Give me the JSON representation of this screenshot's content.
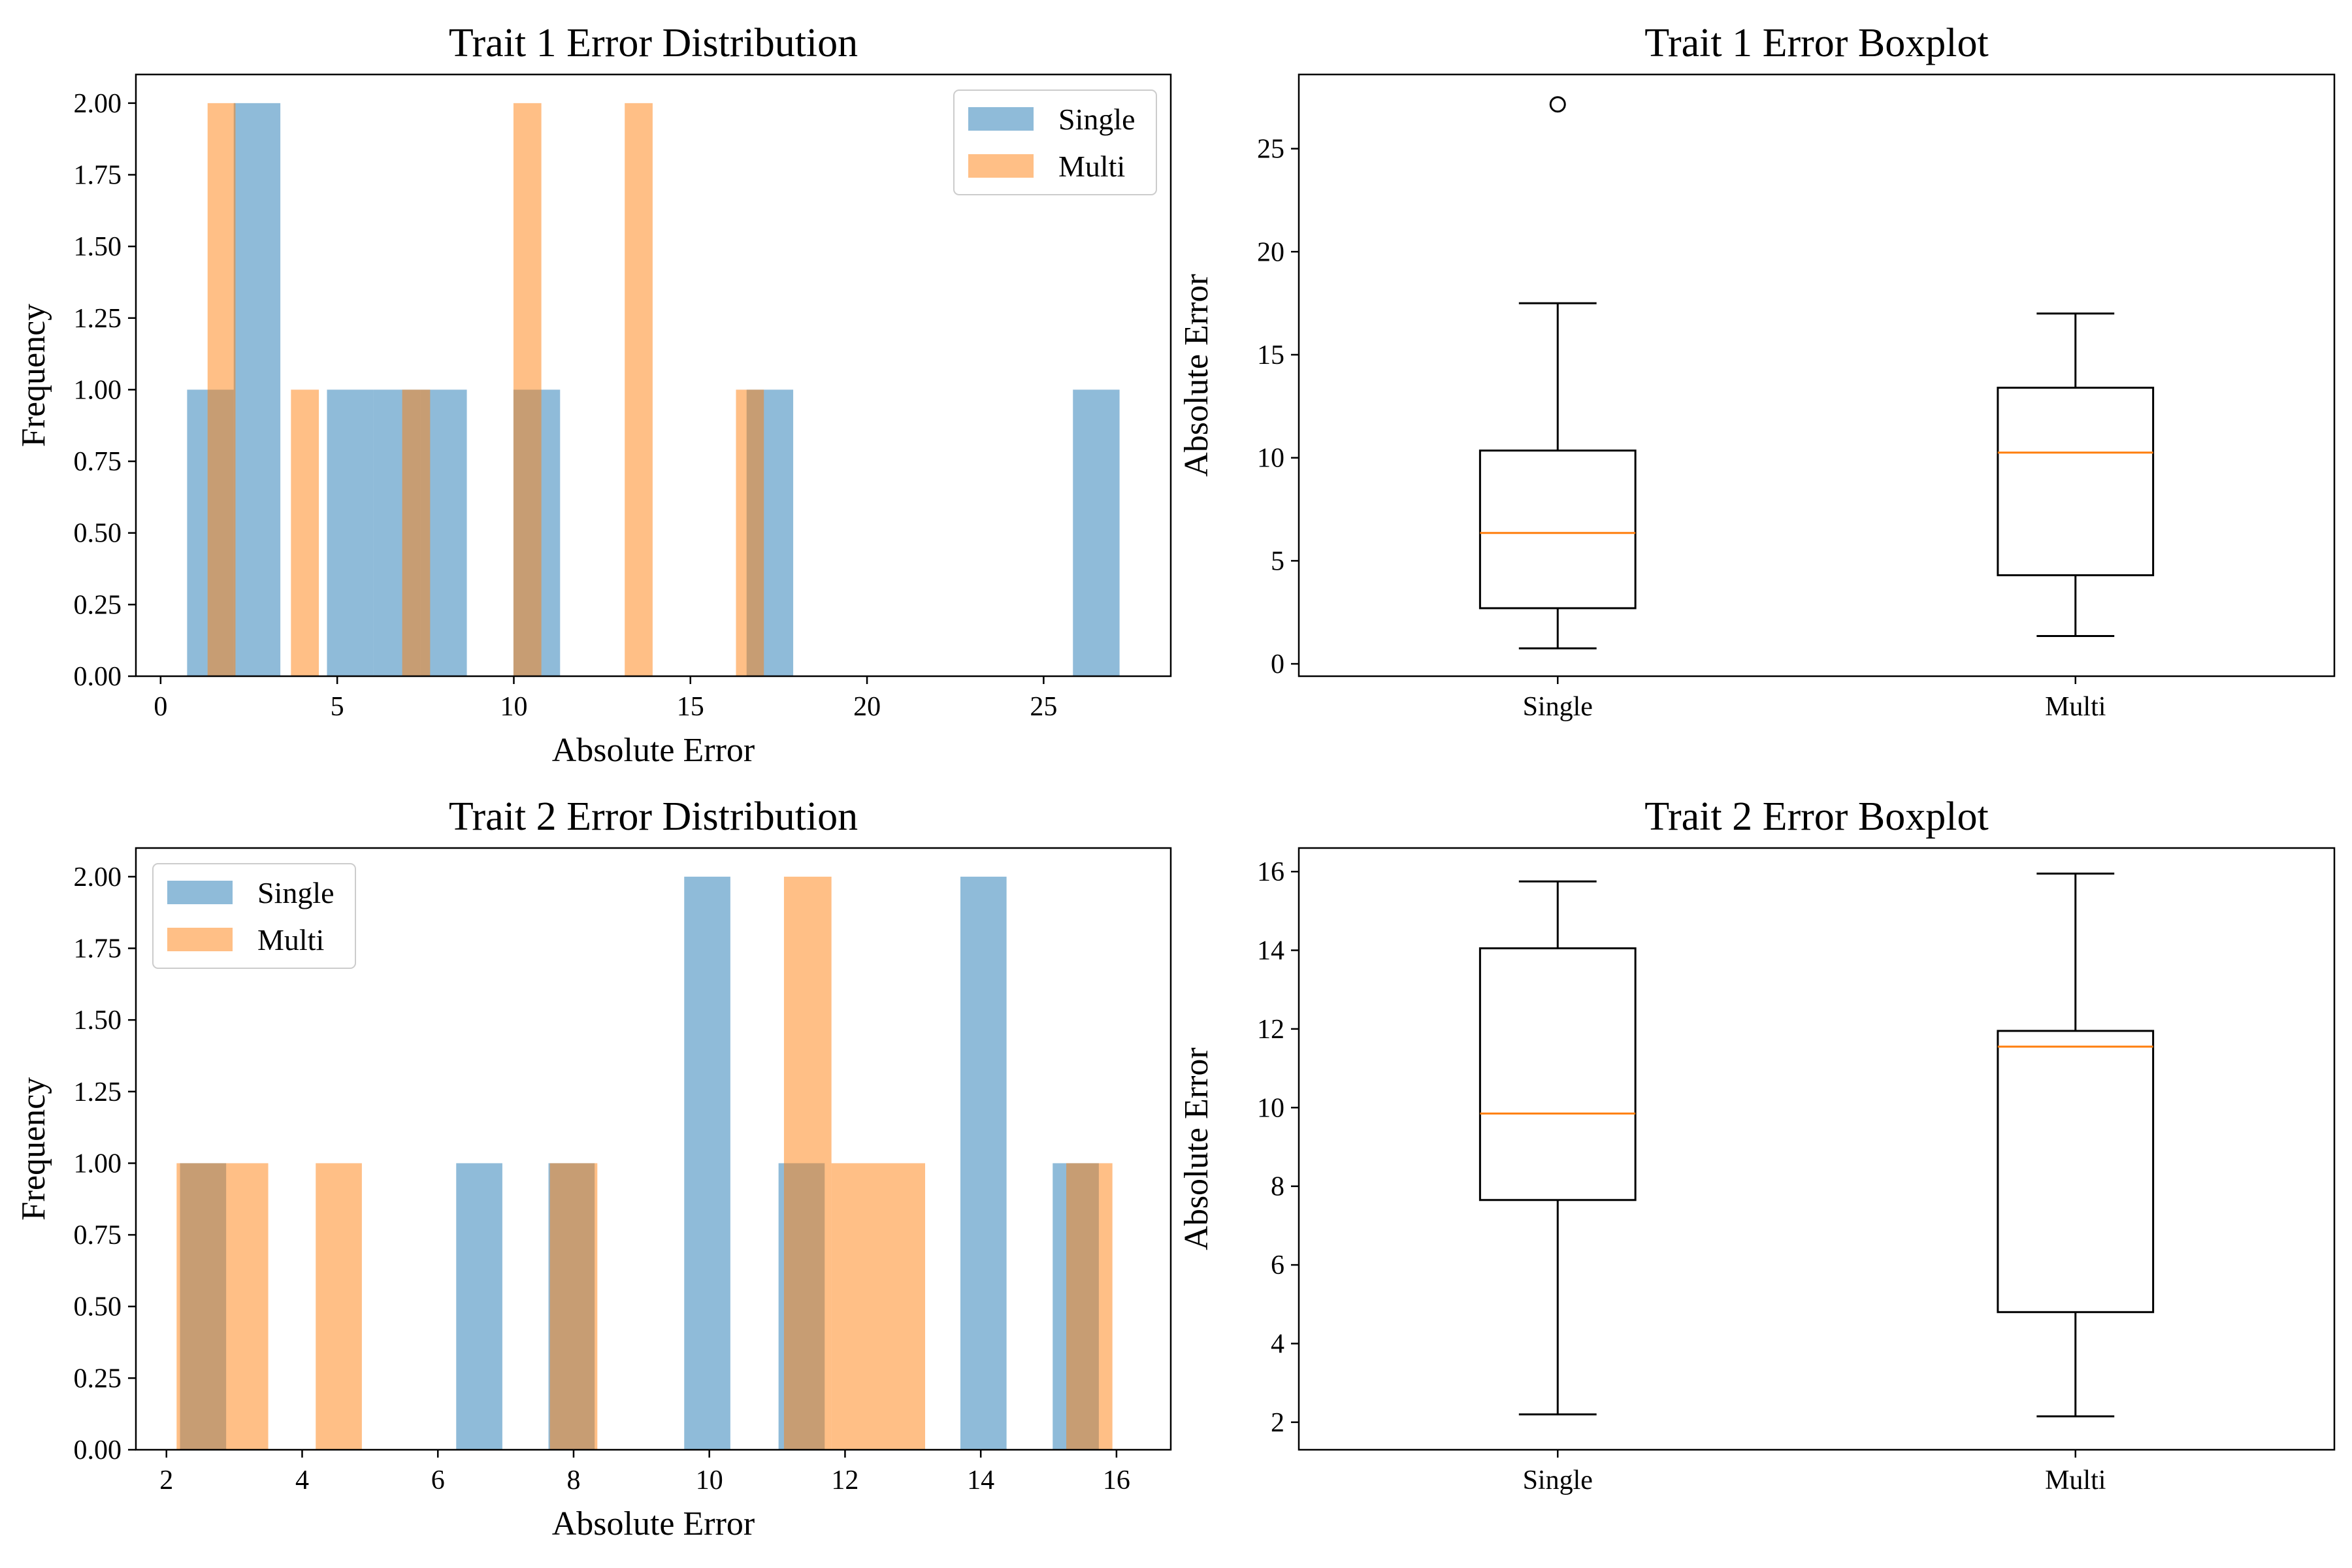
{
  "colors": {
    "single": "#1f77b4",
    "multi": "#ff7f0e",
    "median": "#ff7f0e",
    "axes": "#000000"
  },
  "chart_data": [
    {
      "type": "histogram",
      "title": "Trait 1 Error Distribution",
      "xlabel": "Absolute Error",
      "ylabel": "Frequency",
      "xlim": [
        -0.7,
        28.6
      ],
      "ylim": [
        0,
        2.1
      ],
      "xticks": [
        0,
        5,
        10,
        15,
        20,
        25
      ],
      "yticks": [
        "0.00",
        "0.25",
        "0.50",
        "0.75",
        "1.00",
        "1.25",
        "1.50",
        "1.75",
        "2.00"
      ],
      "legend": "top-right",
      "series": [
        {
          "name": "Single",
          "color": "#1f77b4",
          "opacity": 0.5,
          "bins": [
            {
              "x0": 0.75,
              "x1": 2.07,
              "count": 1
            },
            {
              "x0": 2.07,
              "x1": 3.39,
              "count": 2
            },
            {
              "x0": 4.71,
              "x1": 6.03,
              "count": 1
            },
            {
              "x0": 6.03,
              "x1": 7.35,
              "count": 1
            },
            {
              "x0": 7.35,
              "x1": 8.67,
              "count": 1
            },
            {
              "x0": 9.99,
              "x1": 11.31,
              "count": 1
            },
            {
              "x0": 16.59,
              "x1": 17.91,
              "count": 1
            },
            {
              "x0": 25.83,
              "x1": 27.15,
              "count": 1
            }
          ]
        },
        {
          "name": "Multi",
          "color": "#ff7f0e",
          "opacity": 0.5,
          "bins": [
            {
              "x0": 1.33,
              "x1": 2.12,
              "count": 2
            },
            {
              "x0": 3.69,
              "x1": 4.48,
              "count": 1
            },
            {
              "x0": 6.84,
              "x1": 7.63,
              "count": 1
            },
            {
              "x0": 9.99,
              "x1": 10.78,
              "count": 2
            },
            {
              "x0": 13.14,
              "x1": 13.93,
              "count": 2
            },
            {
              "x0": 16.29,
              "x1": 17.08,
              "count": 1
            }
          ]
        }
      ]
    },
    {
      "type": "boxplot",
      "title": "Trait 1 Error Boxplot",
      "xlabel": "",
      "ylabel": "Absolute Error",
      "ylim": [
        -0.6,
        28.6
      ],
      "yticks": [
        0,
        5,
        10,
        15,
        20,
        25
      ],
      "categories": [
        "Single",
        "Multi"
      ],
      "boxes": [
        {
          "name": "Single",
          "whisker_low": 0.75,
          "q1": 2.7,
          "median": 6.35,
          "q3": 10.35,
          "whisker_high": 17.5,
          "outliers": [
            27.15
          ]
        },
        {
          "name": "Multi",
          "whisker_low": 1.35,
          "q1": 4.3,
          "median": 10.25,
          "q3": 13.4,
          "whisker_high": 17.0,
          "outliers": []
        }
      ]
    },
    {
      "type": "histogram",
      "title": "Trait 2 Error Distribution",
      "xlabel": "Absolute Error",
      "ylabel": "Frequency",
      "xlim": [
        1.55,
        16.8
      ],
      "ylim": [
        0,
        2.1
      ],
      "xticks": [
        2,
        4,
        6,
        8,
        10,
        12,
        14,
        16
      ],
      "yticks": [
        "0.00",
        "0.25",
        "0.50",
        "0.75",
        "1.00",
        "1.25",
        "1.50",
        "1.75",
        "2.00"
      ],
      "legend": "top-left",
      "series": [
        {
          "name": "Single",
          "color": "#1f77b4",
          "opacity": 0.5,
          "bins": [
            {
              "x0": 2.2,
              "x1": 2.88,
              "count": 1
            },
            {
              "x0": 6.27,
              "x1": 6.95,
              "count": 1
            },
            {
              "x0": 7.63,
              "x1": 8.31,
              "count": 1
            },
            {
              "x0": 9.63,
              "x1": 10.31,
              "count": 2
            },
            {
              "x0": 11.02,
              "x1": 11.7,
              "count": 1
            },
            {
              "x0": 13.7,
              "x1": 14.38,
              "count": 2
            },
            {
              "x0": 15.06,
              "x1": 15.74,
              "count": 1
            }
          ]
        },
        {
          "name": "Multi",
          "color": "#ff7f0e",
          "opacity": 0.5,
          "bins": [
            {
              "x0": 2.15,
              "x1": 3.5,
              "count": 1
            },
            {
              "x0": 4.2,
              "x1": 4.88,
              "count": 1
            },
            {
              "x0": 7.65,
              "x1": 8.35,
              "count": 1
            },
            {
              "x0": 11.1,
              "x1": 11.8,
              "count": 2
            },
            {
              "x0": 11.8,
              "x1": 13.18,
              "count": 1
            },
            {
              "x0": 15.26,
              "x1": 15.94,
              "count": 1
            }
          ]
        }
      ]
    },
    {
      "type": "boxplot",
      "title": "Trait 2 Error Boxplot",
      "xlabel": "",
      "ylabel": "Absolute Error",
      "ylim": [
        1.3,
        16.6
      ],
      "yticks": [
        2,
        4,
        6,
        8,
        10,
        12,
        14,
        16
      ],
      "categories": [
        "Single",
        "Multi"
      ],
      "boxes": [
        {
          "name": "Single",
          "whisker_low": 2.2,
          "q1": 7.65,
          "median": 9.85,
          "q3": 14.05,
          "whisker_high": 15.75,
          "outliers": []
        },
        {
          "name": "Multi",
          "whisker_low": 2.15,
          "q1": 4.8,
          "median": 11.55,
          "q3": 11.95,
          "whisker_high": 15.95,
          "outliers": []
        }
      ]
    }
  ]
}
